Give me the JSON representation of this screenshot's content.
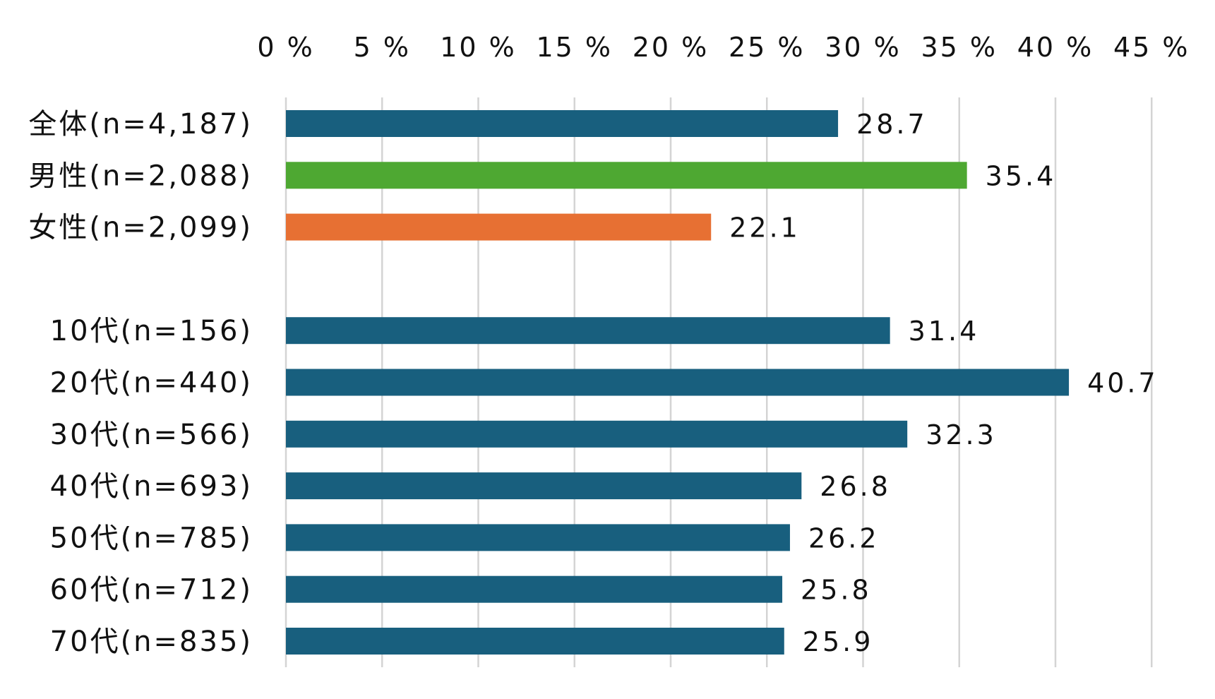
{
  "chart_data": {
    "type": "bar",
    "orientation": "horizontal",
    "title": "",
    "xlabel": "",
    "ylabel": "",
    "xlim": [
      0,
      45
    ],
    "x_ticks": [
      0,
      5,
      10,
      15,
      20,
      25,
      30,
      35,
      40,
      45
    ],
    "x_tick_labels": [
      "0 %",
      "5 %",
      "10 %",
      "15 %",
      "20 %",
      "25 %",
      "30 %",
      "35 %",
      "40 %",
      "45 %"
    ],
    "x_axis_position": "top",
    "grid": "vertical",
    "legend": "none",
    "categories": [
      "全体(n=4,187)",
      "男性(n=2,088)",
      "女性(n=2,099)",
      "10代(n=156)",
      "20代(n=440)",
      "30代(n=566)",
      "40代(n=693)",
      "50代(n=785)",
      "60代(n=712)",
      "70代(n=835)"
    ],
    "groups": [
      [
        0,
        1,
        2
      ],
      [
        3,
        4,
        5,
        6,
        7,
        8,
        9
      ]
    ],
    "values": [
      28.7,
      35.4,
      22.1,
      31.4,
      40.7,
      32.3,
      26.8,
      26.2,
      25.8,
      25.9
    ],
    "value_labels": [
      "28.7",
      "35.4",
      "22.1",
      "31.4",
      "40.7",
      "32.3",
      "26.8",
      "26.2",
      "25.8",
      "25.9"
    ],
    "bar_colors": [
      "#185F7E",
      "#4EA832",
      "#E77033",
      "#185F7E",
      "#185F7E",
      "#185F7E",
      "#185F7E",
      "#185F7E",
      "#185F7E",
      "#185F7E"
    ],
    "grid_color": "#d4d4d4",
    "text_color": "#111111"
  }
}
